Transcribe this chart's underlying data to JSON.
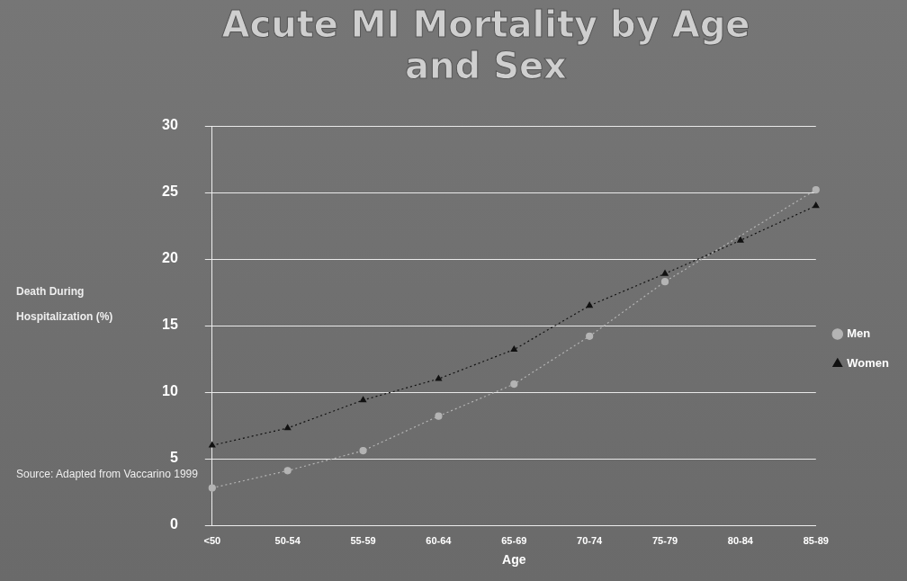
{
  "chart_data": {
    "type": "line",
    "title": "Acute MI Mortality by Age and Sex",
    "xlabel": "Age",
    "ylabel": "Death During Hospitalization (%)",
    "categories": [
      "<50",
      "50-54",
      "55-59",
      "60-64",
      "65-69",
      "70-74",
      "75-79",
      "80-84",
      "85-89"
    ],
    "series": [
      {
        "name": "Men",
        "color": "#b4b4b4",
        "marker": "circle",
        "values": [
          2.8,
          4.1,
          5.6,
          8.2,
          10.6,
          14.2,
          18.3,
          null,
          25.2
        ]
      },
      {
        "name": "Women",
        "color": "#111111",
        "marker": "triangle",
        "values": [
          6.0,
          7.3,
          9.4,
          11.0,
          13.2,
          16.5,
          18.9,
          21.4,
          24.0
        ]
      }
    ],
    "ylim": [
      0,
      30
    ],
    "yticks": [
      0,
      5,
      10,
      15,
      20,
      25,
      30
    ],
    "grid": "y",
    "legend": "right",
    "line_style": "dotted",
    "annotations": [
      "Source: Adapted from Vaccarino 1999"
    ]
  }
}
